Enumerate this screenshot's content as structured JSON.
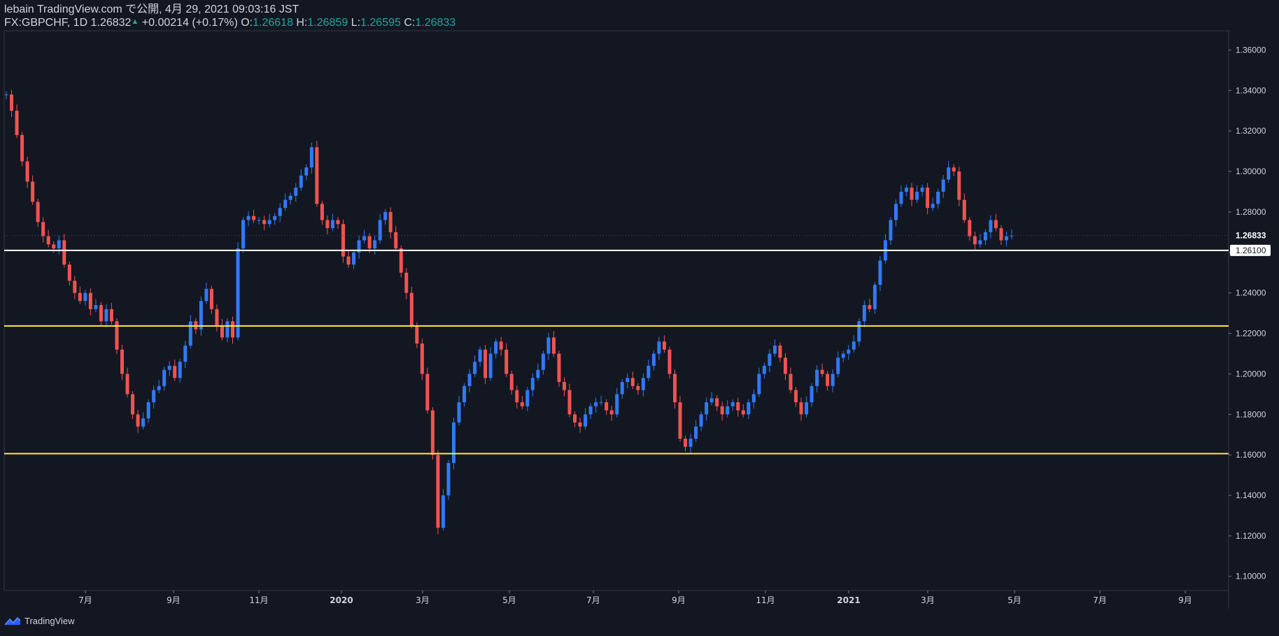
{
  "header": {
    "publisher": "lebain TradingView.com で公開, 4月 29, 2021 09:03:16 JST",
    "symbol": "FX:GBPCHF, 1D",
    "last": "1.26832",
    "change": "+0.00214 (+0.17%)",
    "o_label": "O:",
    "o_value": "1.26618",
    "h_label": "H:",
    "h_value": "1.26859",
    "l_label": "L:",
    "l_value": "1.26595",
    "c_label": "C:",
    "c_value": "1.26833"
  },
  "footer": {
    "brand": "TradingView"
  },
  "colors": {
    "background": "#131722",
    "up": "#3179f5",
    "down": "#f05350",
    "support": "#ffeb3b",
    "level": "#ffffff",
    "axis": "#363a45"
  },
  "chart_data": {
    "type": "candlestick",
    "x_labels": [
      "7月",
      "9月",
      "11月",
      "2020",
      "3月",
      "5月",
      "7月",
      "9月",
      "11月",
      "2021",
      "3月",
      "5月",
      "7月",
      "9月"
    ],
    "y_labels": [
      "1.36000",
      "1.34000",
      "1.32000",
      "1.30000",
      "1.28000",
      "1.26000",
      "1.24000",
      "1.22000",
      "1.20000",
      "1.18000",
      "1.16000",
      "1.14000",
      "1.12000",
      "1.10000"
    ],
    "ylim": [
      1.093,
      1.3695
    ],
    "last_price_label": "1.26833",
    "level_label": "1.26100",
    "hlines": [
      {
        "value": 1.261,
        "color": "#ffffff",
        "label": "1.26100"
      },
      {
        "value": 1.2237,
        "color": "#ffeb3b"
      },
      {
        "value": 1.1606,
        "color": "#ffeb3b"
      }
    ],
    "close_series": [
      1.338,
      1.33,
      1.318,
      1.305,
      1.295,
      1.285,
      1.275,
      1.268,
      1.264,
      1.262,
      1.266,
      1.254,
      1.246,
      1.24,
      1.236,
      1.24,
      1.232,
      1.234,
      1.226,
      1.232,
      1.226,
      1.212,
      1.2,
      1.19,
      1.18,
      1.174,
      1.178,
      1.186,
      1.192,
      1.194,
      1.202,
      1.204,
      1.198,
      1.206,
      1.214,
      1.226,
      1.222,
      1.236,
      1.242,
      1.232,
      1.224,
      1.218,
      1.226,
      1.218,
      1.262,
      1.276,
      1.278,
      1.276,
      1.276,
      1.274,
      1.276,
      1.278,
      1.282,
      1.286,
      1.288,
      1.292,
      1.298,
      1.302,
      1.312,
      1.284,
      1.276,
      1.272,
      1.276,
      1.274,
      1.258,
      1.254,
      1.26,
      1.266,
      1.268,
      1.262,
      1.266,
      1.276,
      1.28,
      1.27,
      1.262,
      1.25,
      1.24,
      1.224,
      1.215,
      1.2,
      1.182,
      1.16,
      1.124,
      1.14,
      1.156,
      1.176,
      1.186,
      1.194,
      1.2,
      1.206,
      1.212,
      1.198,
      1.21,
      1.216,
      1.212,
      1.2,
      1.192,
      1.186,
      1.184,
      1.192,
      1.198,
      1.202,
      1.21,
      1.218,
      1.21,
      1.196,
      1.192,
      1.18,
      1.176,
      1.174,
      1.18,
      1.184,
      1.186,
      1.186,
      1.182,
      1.18,
      1.19,
      1.196,
      1.198,
      1.194,
      1.192,
      1.198,
      1.204,
      1.21,
      1.216,
      1.212,
      1.2,
      1.186,
      1.168,
      1.164,
      1.168,
      1.174,
      1.18,
      1.186,
      1.188,
      1.184,
      1.18,
      1.184,
      1.186,
      1.182,
      1.18,
      1.186,
      1.19,
      1.2,
      1.204,
      1.21,
      1.214,
      1.208,
      1.2,
      1.192,
      1.186,
      1.18,
      1.186,
      1.194,
      1.202,
      1.2,
      1.194,
      1.2,
      1.208,
      1.21,
      1.212,
      1.216,
      1.226,
      1.234,
      1.232,
      1.244,
      1.256,
      1.266,
      1.276,
      1.284,
      1.29,
      1.292,
      1.286,
      1.29,
      1.292,
      1.282,
      1.284,
      1.29,
      1.296,
      1.302,
      1.3,
      1.286,
      1.276,
      1.268,
      1.264,
      1.266,
      1.27,
      1.276,
      1.272,
      1.266,
      1.268,
      1.26833
    ]
  }
}
